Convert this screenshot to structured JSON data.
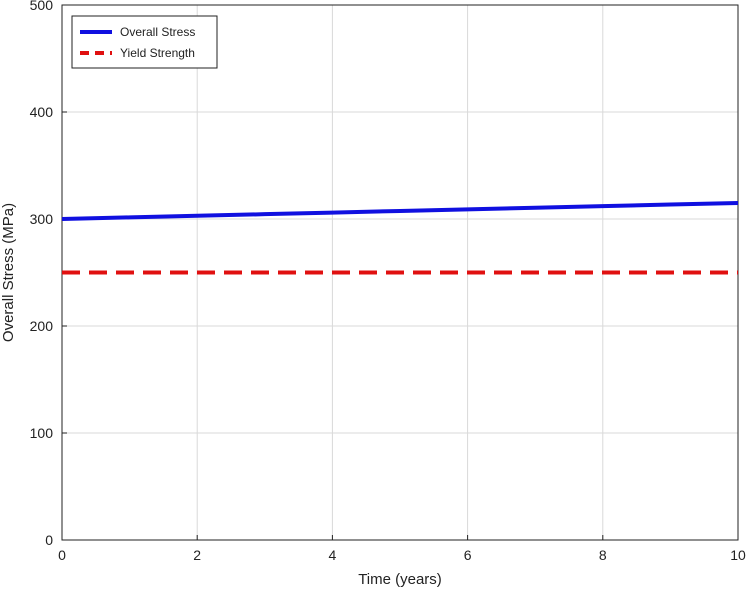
{
  "chart_data": {
    "type": "line",
    "title": "",
    "xlabel": "Time (years)",
    "ylabel": "Overall Stress (MPa)",
    "xlim": [
      0,
      10
    ],
    "ylim": [
      0,
      500
    ],
    "x_ticks": [
      "0",
      "2",
      "4",
      "6",
      "8",
      "10"
    ],
    "y_ticks": [
      "0",
      "100",
      "200",
      "300",
      "400",
      "500"
    ],
    "grid": true,
    "legend_placement": "top-left",
    "series": [
      {
        "name": "Overall Stress",
        "style": "solid",
        "color": "#1010e0",
        "x": [
          0,
          1,
          2,
          3,
          4,
          5,
          6,
          7,
          8,
          9,
          10
        ],
        "y": [
          300,
          301.5,
          303,
          304.5,
          306,
          307.5,
          309,
          310.5,
          312,
          313.5,
          315
        ]
      },
      {
        "name": "Yield Strength",
        "style": "dashed",
        "color": "#e01010",
        "x": [
          0,
          10
        ],
        "y": [
          250,
          250
        ]
      }
    ]
  }
}
